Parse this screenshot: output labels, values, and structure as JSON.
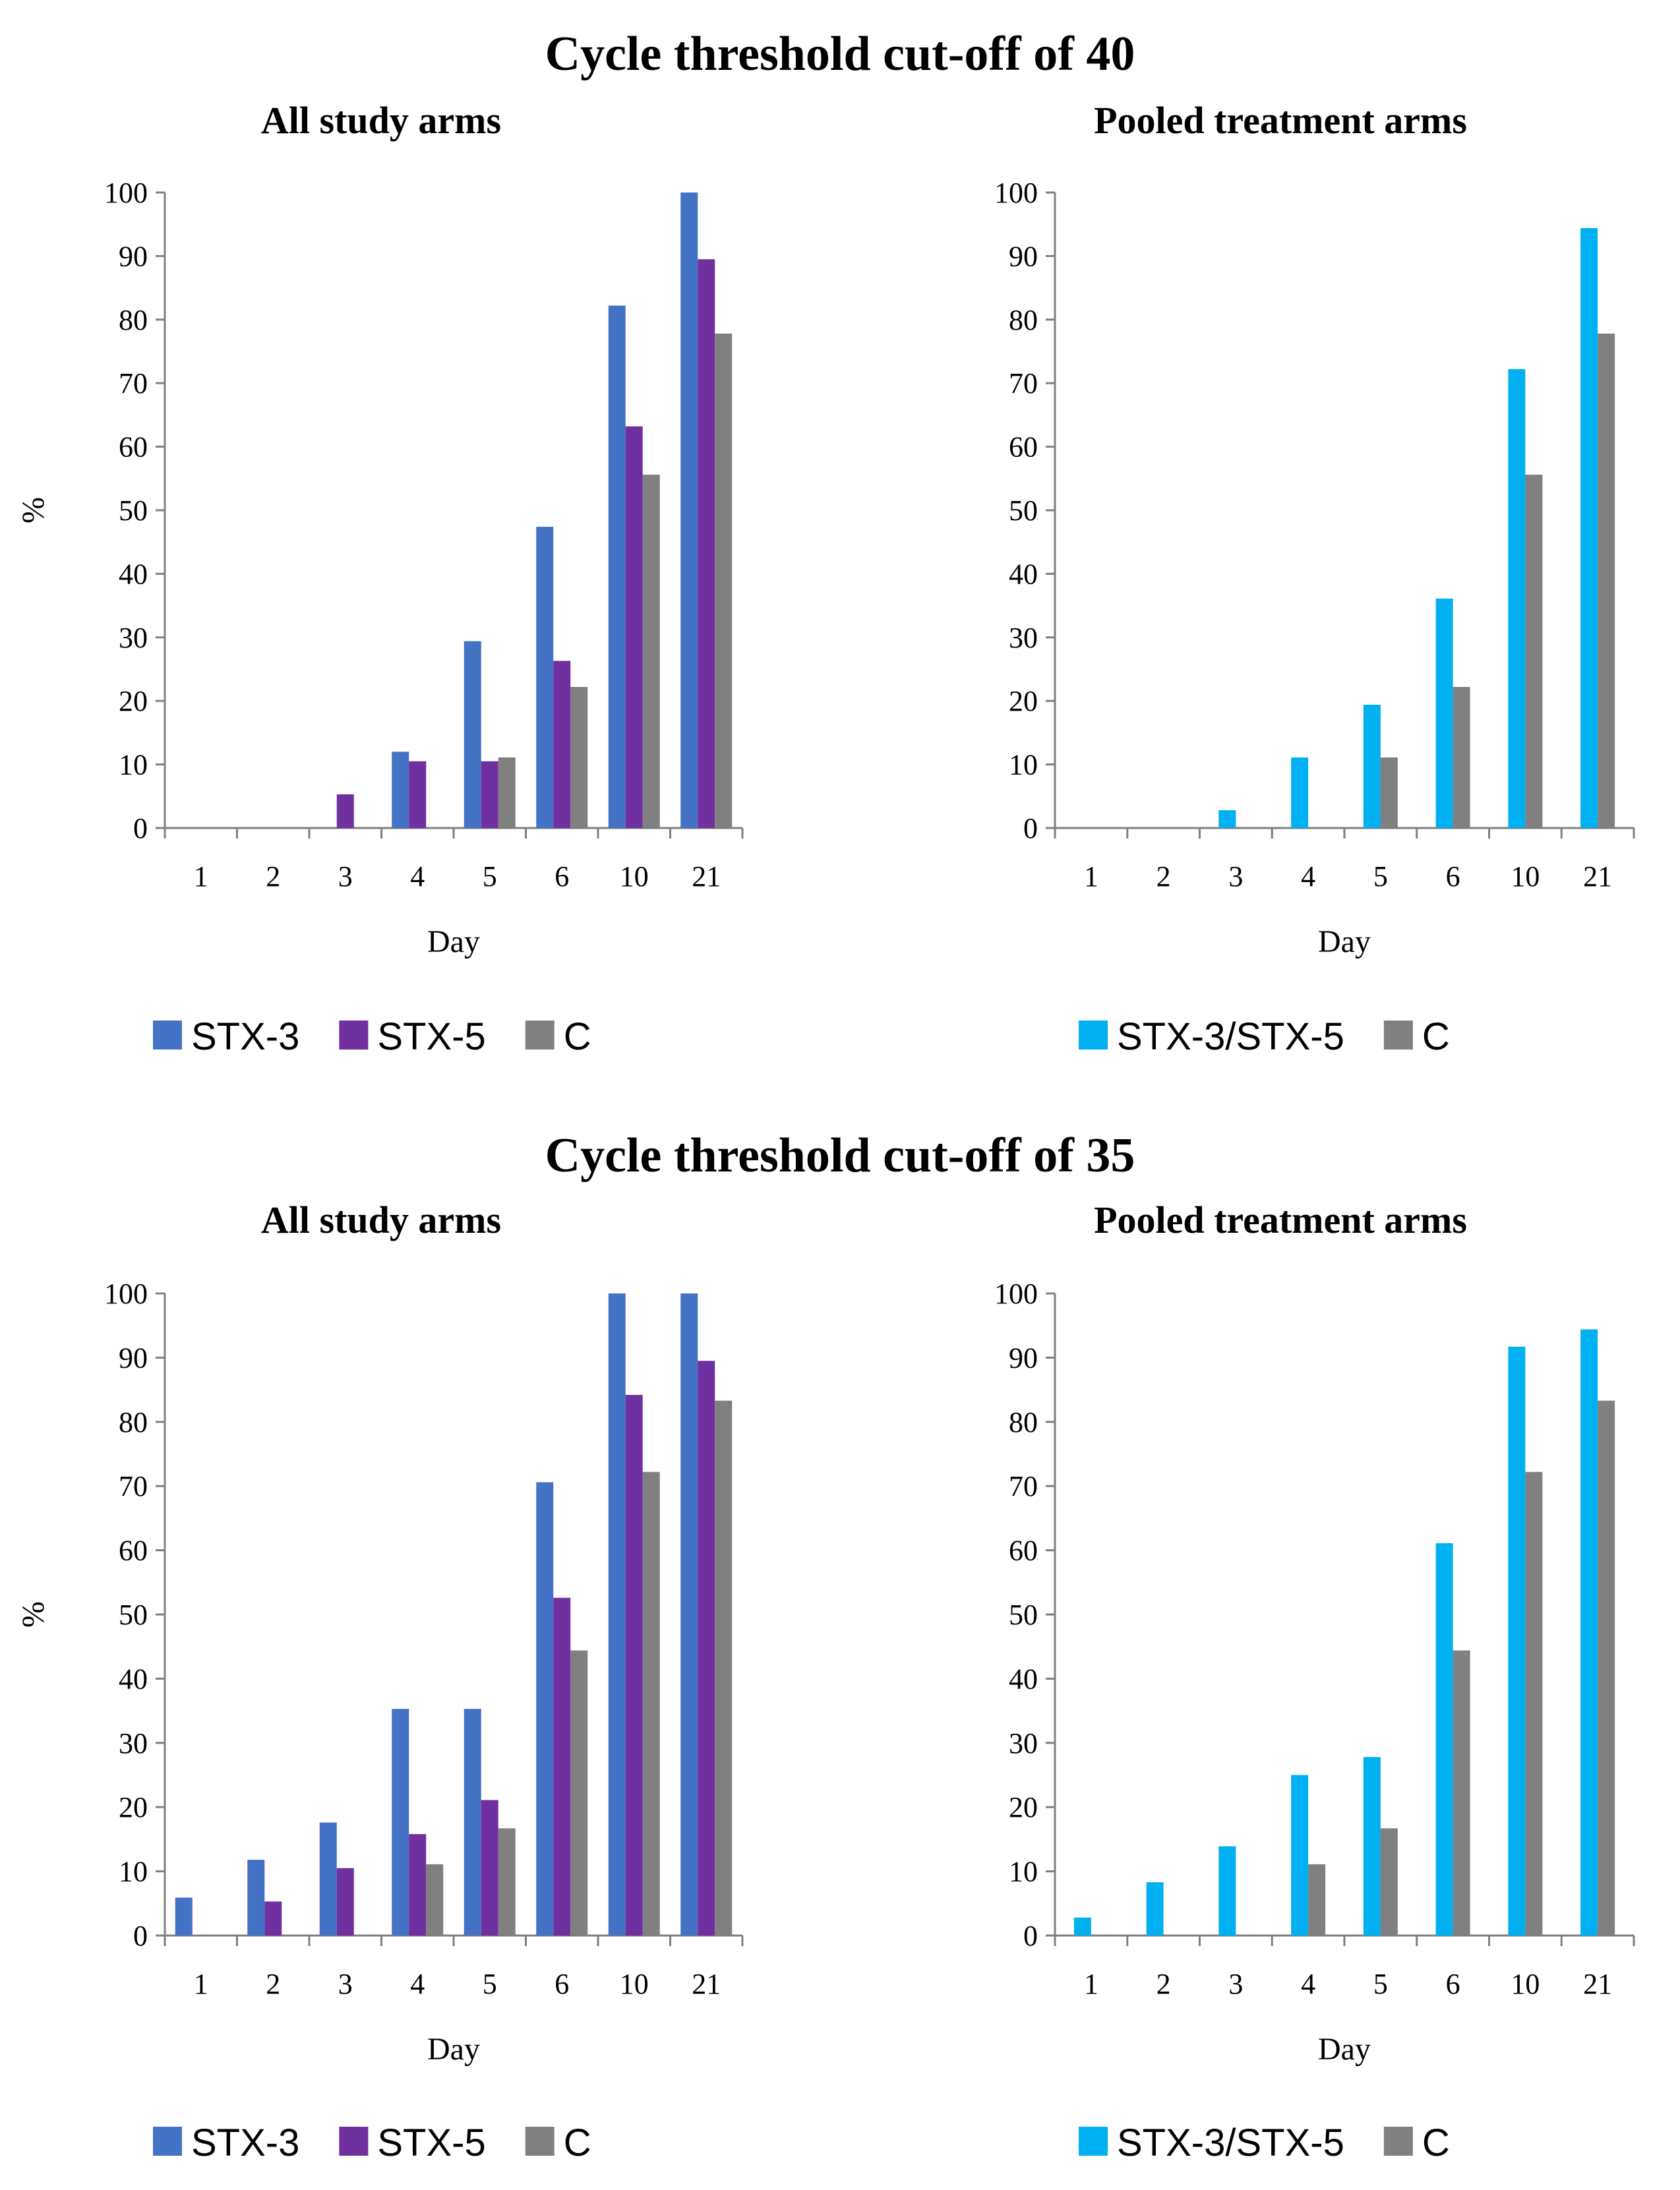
{
  "sections": [
    {
      "title": "Cycle threshold cut-off of 40",
      "charts": [
        {
          "type": "bar",
          "title": "All study arms",
          "xlabel": "Day",
          "ylabel": "%",
          "ylim": [
            0,
            100
          ],
          "yticks": [
            0,
            10,
            20,
            30,
            40,
            50,
            60,
            70,
            80,
            90,
            100
          ],
          "categories": [
            "1",
            "2",
            "3",
            "4",
            "5",
            "6",
            "10",
            "21"
          ],
          "series": [
            {
              "name": "STX-3",
              "color": "#4472c4",
              "values": [
                0,
                0,
                0,
                12,
                29.4,
                47.4,
                82.2,
                100
              ]
            },
            {
              "name": "STX-5",
              "color": "#7030a0",
              "values": [
                0,
                0,
                5.3,
                10.5,
                10.5,
                26.3,
                63.2,
                89.5
              ]
            },
            {
              "name": "C",
              "color": "#808080",
              "values": [
                0,
                0,
                0,
                0,
                11.1,
                22.2,
                55.6,
                77.8
              ]
            }
          ]
        },
        {
          "type": "bar",
          "title": "Pooled treatment arms",
          "xlabel": "Day",
          "ylabel": "",
          "ylim": [
            0,
            100
          ],
          "yticks": [
            0,
            10,
            20,
            30,
            40,
            50,
            60,
            70,
            80,
            90,
            100
          ],
          "categories": [
            "1",
            "2",
            "3",
            "4",
            "5",
            "6",
            "10",
            "21"
          ],
          "series": [
            {
              "name": "STX-3/STX-5",
              "color": "#00b0f0",
              "values": [
                0,
                0,
                2.8,
                11.1,
                19.4,
                36.1,
                72.2,
                94.4
              ]
            },
            {
              "name": "C",
              "color": "#808080",
              "values": [
                0,
                0,
                0,
                0,
                11.1,
                22.2,
                55.6,
                77.8
              ]
            }
          ]
        }
      ]
    },
    {
      "title": "Cycle threshold cut-off of 35",
      "charts": [
        {
          "type": "bar",
          "title": "All study arms",
          "xlabel": "Day",
          "ylabel": "%",
          "ylim": [
            0,
            100
          ],
          "yticks": [
            0,
            10,
            20,
            30,
            40,
            50,
            60,
            70,
            80,
            90,
            100
          ],
          "categories": [
            "1",
            "2",
            "3",
            "4",
            "5",
            "6",
            "10",
            "21"
          ],
          "series": [
            {
              "name": "STX-3",
              "color": "#4472c4",
              "values": [
                5.9,
                11.8,
                17.6,
                35.3,
                35.3,
                70.6,
                100,
                100
              ]
            },
            {
              "name": "STX-5",
              "color": "#7030a0",
              "values": [
                0,
                5.3,
                10.5,
                15.8,
                21.1,
                52.6,
                84.2,
                89.5
              ]
            },
            {
              "name": "C",
              "color": "#808080",
              "values": [
                0,
                0,
                0,
                11.1,
                16.7,
                44.4,
                72.2,
                83.3
              ]
            }
          ]
        },
        {
          "type": "bar",
          "title": "Pooled treatment arms",
          "xlabel": "Day",
          "ylabel": "",
          "ylim": [
            0,
            100
          ],
          "yticks": [
            0,
            10,
            20,
            30,
            40,
            50,
            60,
            70,
            80,
            90,
            100
          ],
          "categories": [
            "1",
            "2",
            "3",
            "4",
            "5",
            "6",
            "10",
            "21"
          ],
          "series": [
            {
              "name": "STX-3/STX-5",
              "color": "#00b0f0",
              "values": [
                2.8,
                8.3,
                13.9,
                25,
                27.8,
                61.1,
                91.7,
                94.4
              ]
            },
            {
              "name": "C",
              "color": "#808080",
              "values": [
                0,
                0,
                0,
                11.1,
                16.7,
                44.4,
                72.2,
                83.3
              ]
            }
          ]
        }
      ]
    }
  ]
}
